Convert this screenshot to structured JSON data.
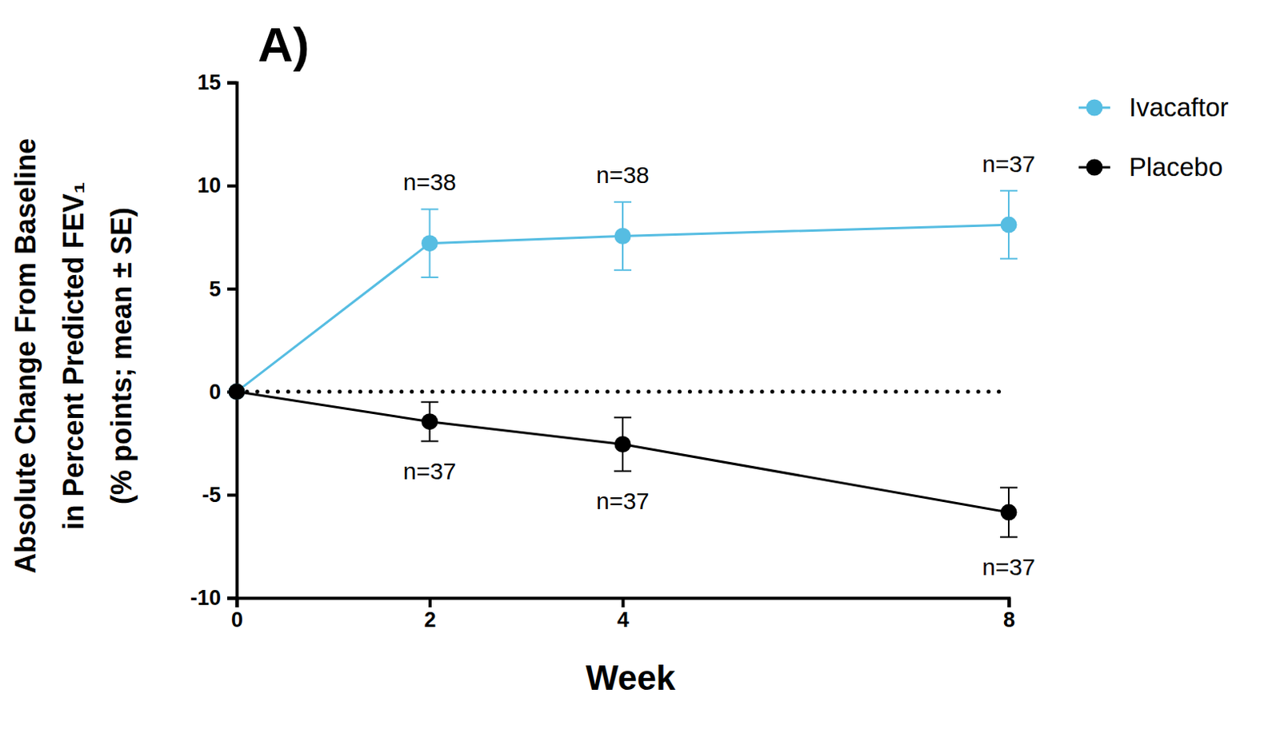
{
  "chart_data": {
    "type": "line",
    "title": "A)",
    "x_label": "Week",
    "y_label": [
      "Absolute Change From Baseline",
      "in Percent Predicted FEV₁",
      "(% points; mean ± SE)"
    ],
    "x": [
      0,
      2,
      4,
      8
    ],
    "xlim": [
      0,
      8
    ],
    "xticks": [
      0,
      2,
      4,
      8
    ],
    "ylim": [
      -10,
      15
    ],
    "yticks": [
      -10,
      -5,
      0,
      5,
      10,
      15
    ],
    "hline": 0,
    "legend": "right",
    "grid": false,
    "series": [
      {
        "name": "Ivacaftor",
        "color": "#56bde2",
        "marker": "circle",
        "values": [
          0,
          7.2,
          7.55,
          8.1
        ],
        "errors": [
          null,
          1.65,
          1.65,
          1.65
        ],
        "n_labels": [
          null,
          "n=38",
          "n=38",
          "n=37"
        ]
      },
      {
        "name": "Placebo",
        "color": "#000000",
        "marker": "circle",
        "values": [
          0,
          -1.45,
          -2.55,
          -5.85
        ],
        "errors": [
          null,
          0.95,
          1.3,
          1.2
        ],
        "n_labels": [
          null,
          "n=37",
          "n=37",
          "n=37"
        ]
      }
    ]
  }
}
